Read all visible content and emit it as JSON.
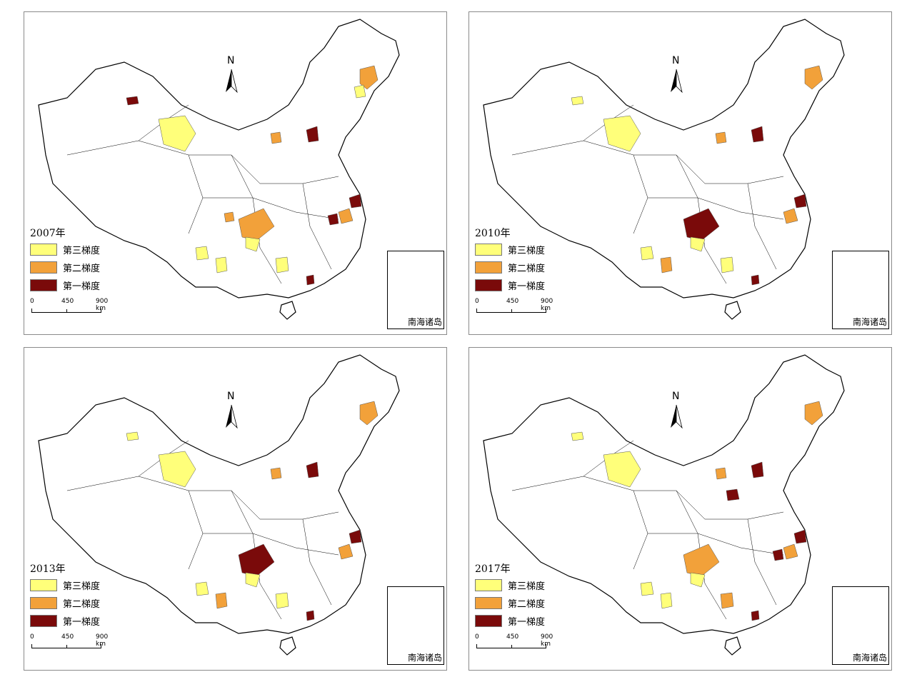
{
  "panels": [
    {
      "year_label": "2007年"
    },
    {
      "year_label": "2010年"
    },
    {
      "year_label": "2013年"
    },
    {
      "year_label": "2017年"
    }
  ],
  "legend": {
    "tier3": "第三梯度",
    "tier2": "第二梯度",
    "tier1": "第一梯度"
  },
  "scale": {
    "t0": "0",
    "t1": "450",
    "t2": "900 km"
  },
  "north_label": "N",
  "inset_label": "南海诸岛",
  "colors": {
    "tier3": "#ffff7a",
    "tier2": "#f2a13a",
    "tier1": "#7a0a0a",
    "border": "#000000"
  }
}
